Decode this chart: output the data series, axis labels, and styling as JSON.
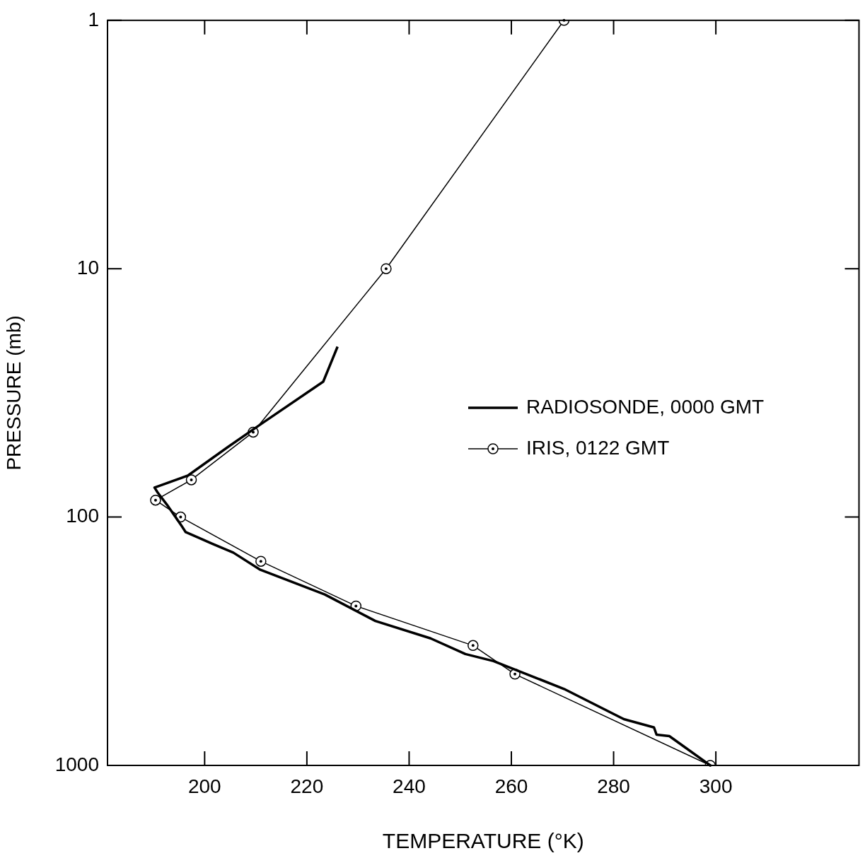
{
  "chart_data": {
    "type": "line",
    "xlabel": "TEMPERATURE (°K)",
    "ylabel": "PRESSURE (mb)",
    "log": "y",
    "xlim": [
      181,
      328
    ],
    "ylim": [
      1000,
      1
    ],
    "xticks": [
      200,
      220,
      240,
      260,
      280,
      300
    ],
    "yticks": [
      1,
      10,
      100,
      1000
    ],
    "grid": false,
    "legend": "right",
    "series": [
      {
        "name": "RADIOSONDE, 0000 GMT",
        "color": "#000000",
        "marker": "none",
        "x": [
          226,
          223.2,
          211.1,
          204.4,
          196.7,
          190.2,
          190.8,
          192.6,
          195.3,
          196.3,
          201.5,
          205.6,
          210.9,
          223.5,
          233.4,
          244.2,
          251,
          256.5,
          270.3,
          282,
          287.9,
          288.4,
          290.9,
          298.9
        ],
        "values": [
          20.6,
          28.5,
          42.1,
          52.5,
          68.1,
          76.1,
          79.6,
          89,
          107,
          115,
          128,
          139,
          163,
          205,
          262,
          308,
          356,
          380,
          492,
          651,
          703,
          752,
          762,
          1000
        ]
      },
      {
        "name": "IRIS, 0122 GMT",
        "color": "#000000",
        "marker": "circle",
        "x": [
          270.3,
          235.5,
          209.5,
          197.4,
          190.4,
          195.3,
          211,
          229.6,
          252.5,
          260.7,
          298.9
        ],
        "values": [
          1,
          10,
          45.5,
          70.8,
          85.5,
          100,
          150.7,
          228,
          329,
          429,
          1000
        ]
      }
    ]
  }
}
